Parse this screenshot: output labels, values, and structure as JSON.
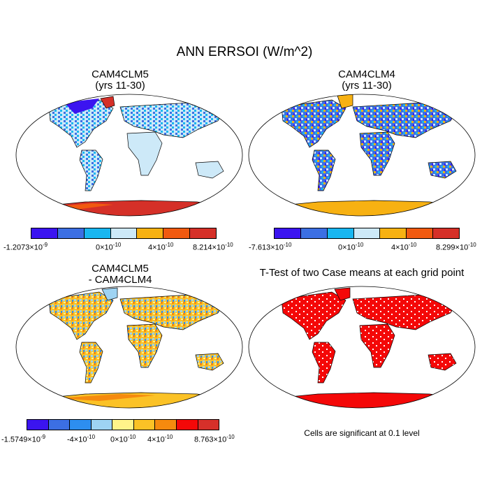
{
  "title": "ANN ERRSOI (W/m^2)",
  "panels": [
    {
      "title": "CAM4CLM5",
      "subtitle": "(yrs 11-30)"
    },
    {
      "title": "CAM4CLM4",
      "subtitle": "(yrs 11-30)"
    },
    {
      "title": "CAM4CLM5",
      "subtitle": "- CAM4CLM4"
    },
    {
      "title": "T-Test of two Case means at each grid point",
      "subtitle": ""
    }
  ],
  "colorbars": {
    "cb1": {
      "colors": [
        "#3b14f0",
        "#3c6fe3",
        "#19b6f0",
        "#cde9f8",
        "#f7b112",
        "#f15a10",
        "#d53028"
      ],
      "labels": [
        "-1.2073×10",
        "0×10",
        "4×10",
        "8.214×10"
      ],
      "exps": [
        "-9",
        "-10",
        "-10",
        "-10"
      ]
    },
    "cb2": {
      "colors": [
        "#3b14f0",
        "#3c6fe3",
        "#19b6f0",
        "#cde9f8",
        "#f7b112",
        "#f15a10",
        "#d53028"
      ],
      "labels": [
        "-7.613×10",
        "0×10",
        "4×10",
        "8.299×10"
      ],
      "exps": [
        "-10",
        "-10",
        "-10",
        "-10"
      ]
    },
    "cb3": {
      "colors": [
        "#3b14f0",
        "#3c6fe3",
        "#2d8ef0",
        "#9ed3f3",
        "#fff48a",
        "#fbc226",
        "#f58a0e",
        "#f40808",
        "#d6302a"
      ],
      "labels": [
        "-1.5749×10",
        "-4×10",
        "0×10",
        "4×10",
        "8.763×10"
      ],
      "exps": [
        "-9",
        "-10",
        "-10",
        "-10",
        "-10"
      ]
    }
  },
  "note": "Cells are significant at 0.1 level"
}
